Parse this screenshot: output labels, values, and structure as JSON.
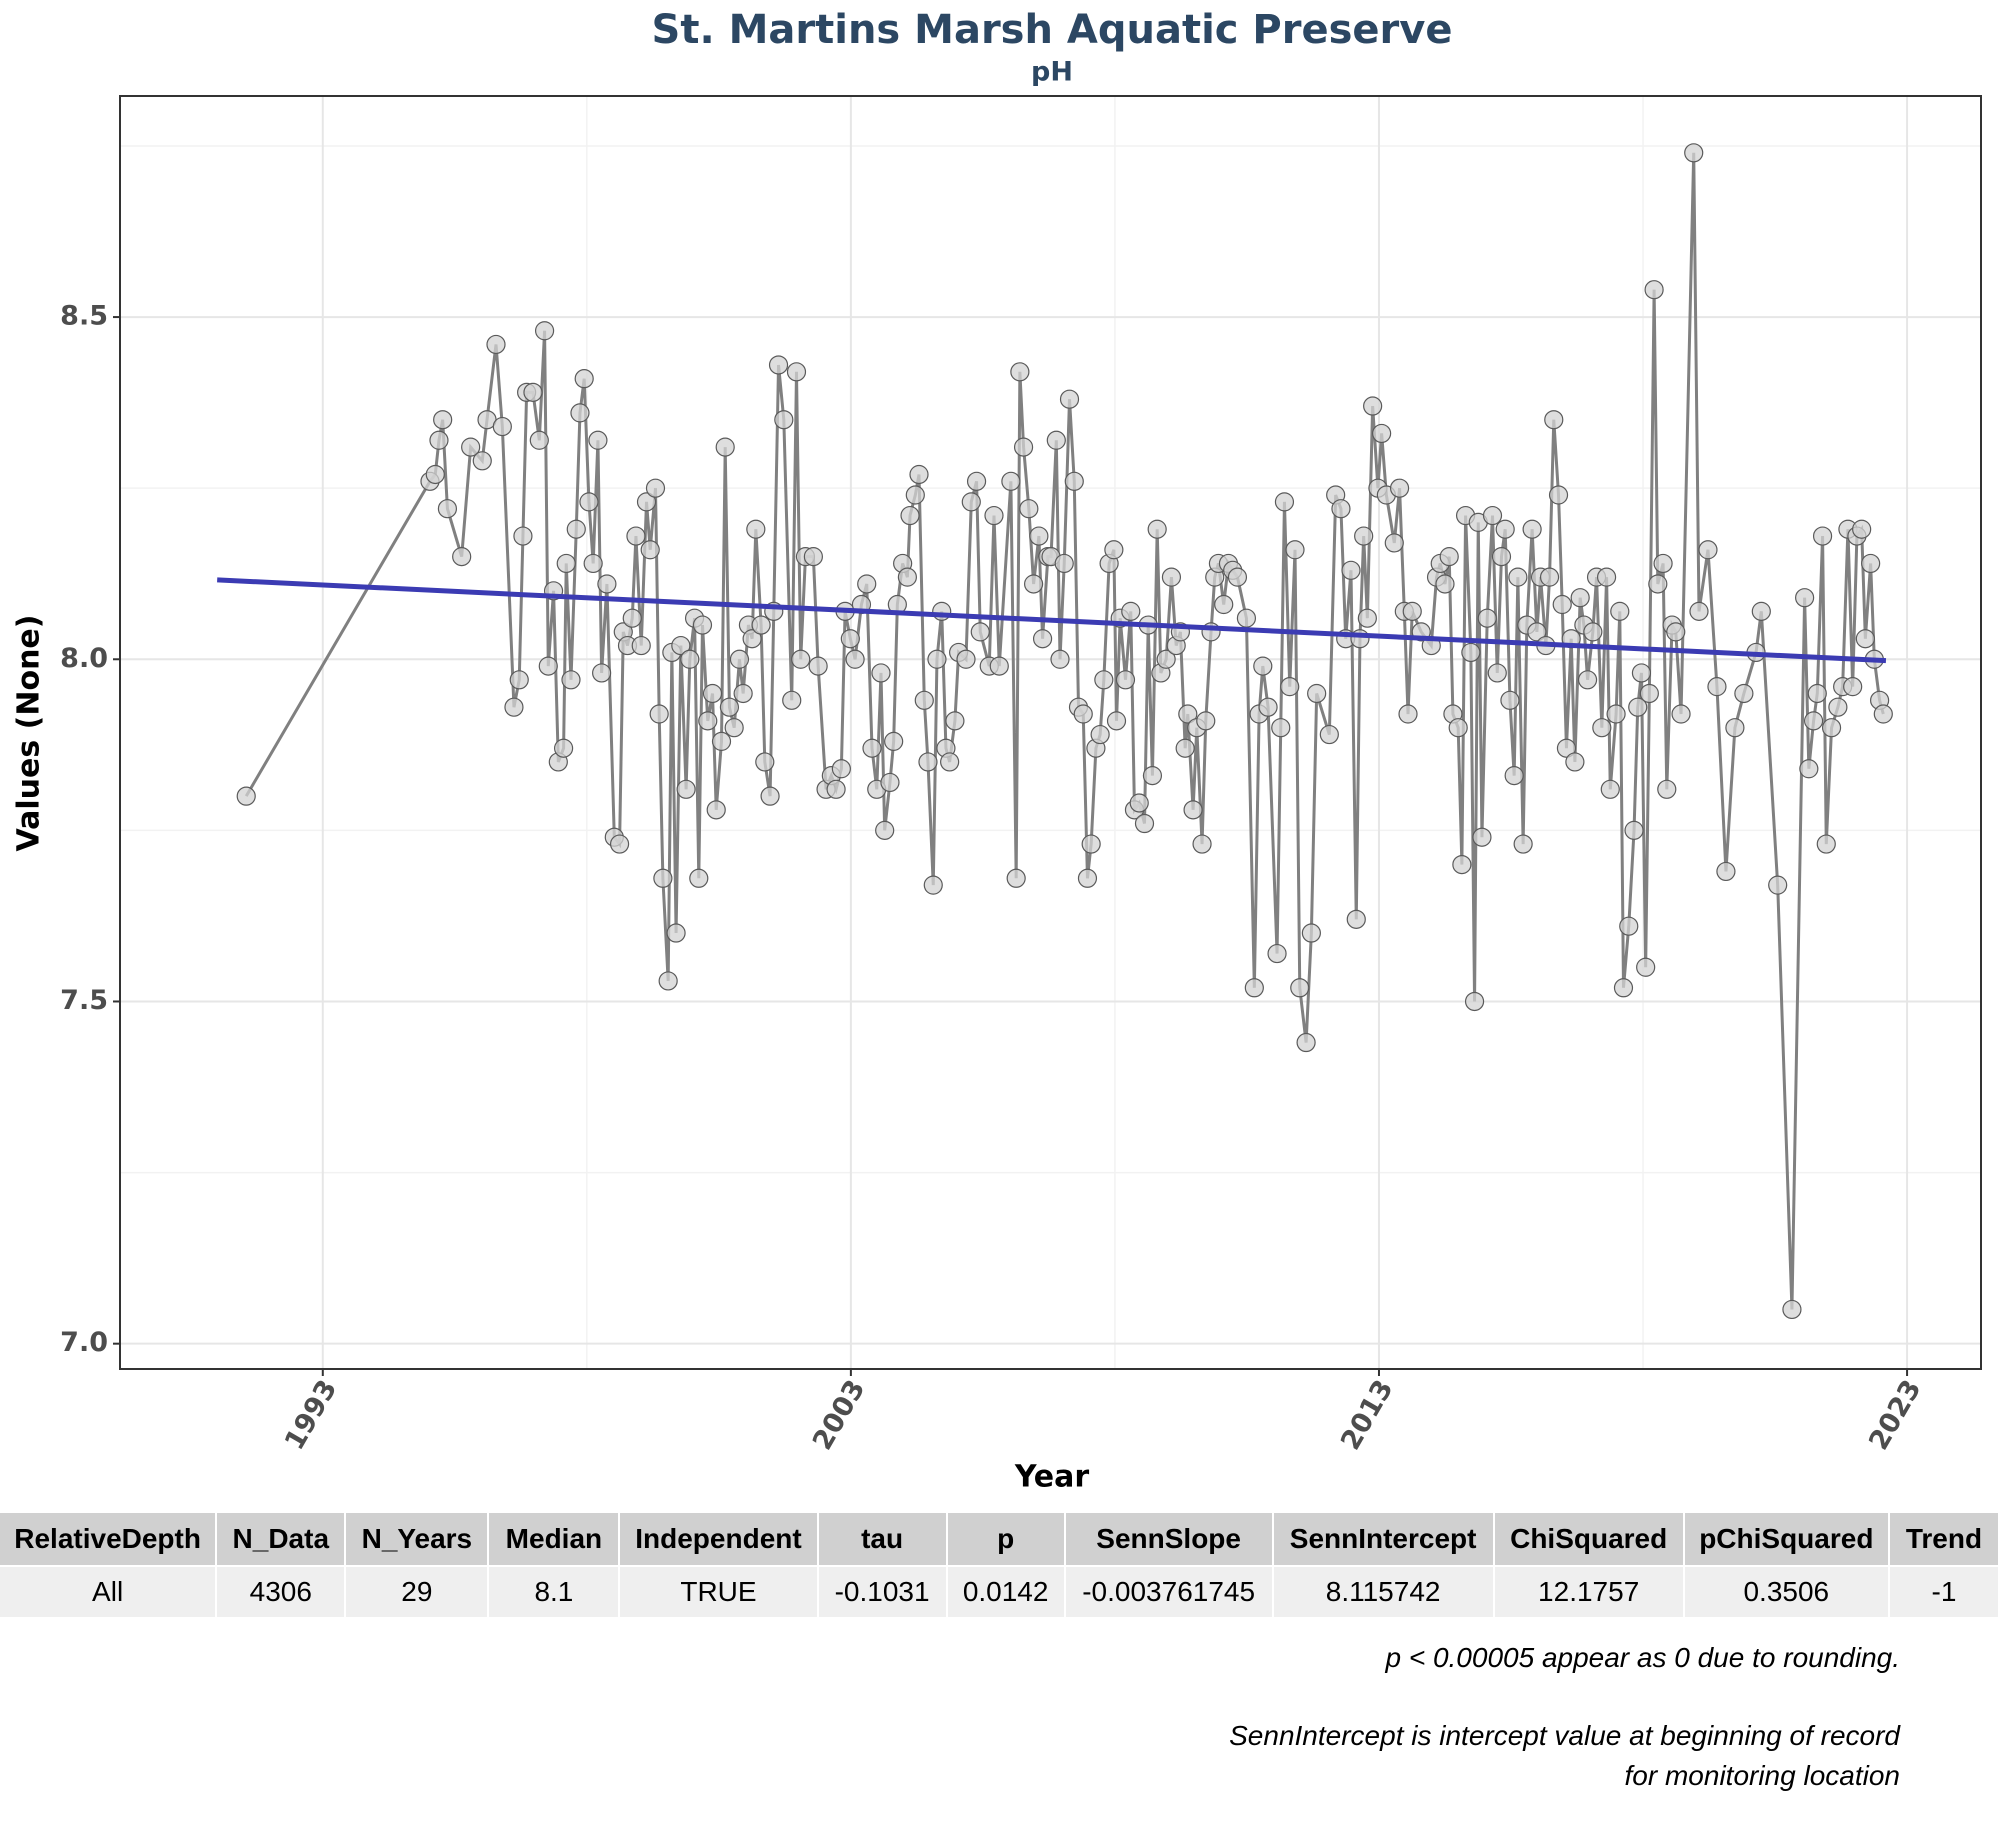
{
  "chart_data": {
    "type": "line",
    "title": "St. Martins Marsh Aquatic Preserve",
    "subtitle": "pH",
    "x_label": "Year",
    "y_label": "Values (None)",
    "xlim": [
      1989.16,
      2024.4
    ],
    "xticks": [
      1993,
      2003,
      2013,
      2023
    ],
    "x_minor_ticks": [
      1998,
      2008,
      2018
    ],
    "ylim": [
      6.963,
      8.823
    ],
    "yticks": [
      {
        "value": 7,
        "label": "7.0"
      },
      7.5,
      {
        "value": 8,
        "label": "8.0"
      },
      8.5
    ],
    "y_minor_ticks": [
      7.25,
      7.75,
      8.25,
      8.75
    ],
    "grid": true,
    "color": "#808080",
    "marker_color": "#d3d3d3",
    "x": [
      1991.55,
      1995.03,
      1995.13,
      1995.2,
      1995.27,
      1995.36,
      1995.63,
      1995.8,
      1996.02,
      1996.11,
      1996.28,
      1996.4,
      1996.62,
      1996.72,
      1996.79,
      1996.86,
      1996.98,
      1997.1,
      1997.2,
      1997.27,
      1997.37,
      1997.46,
      1997.56,
      1997.61,
      1997.7,
      1997.8,
      1997.87,
      1997.95,
      1998.04,
      1998.12,
      1998.21,
      1998.28,
      1998.38,
      1998.52,
      1998.62,
      1998.69,
      1998.77,
      1998.86,
      1998.93,
      1999.03,
      1999.13,
      1999.2,
      1999.3,
      1999.37,
      1999.44,
      1999.54,
      1999.61,
      1999.69,
      1999.78,
      1999.88,
      1999.95,
      2000.04,
      2000.12,
      2000.19,
      2000.29,
      2000.38,
      2000.45,
      2000.55,
      2000.62,
      2000.7,
      2000.79,
      2000.89,
      2000.96,
      2001.06,
      2001.13,
      2001.2,
      2001.3,
      2001.37,
      2001.47,
      2001.54,
      2001.63,
      2001.73,
      2001.88,
      2001.97,
      2002.05,
      2002.14,
      2002.29,
      2002.38,
      2002.53,
      2002.63,
      2002.72,
      2002.82,
      2002.89,
      2002.99,
      2003.08,
      2003.2,
      2003.3,
      2003.4,
      2003.49,
      2003.57,
      2003.64,
      2003.74,
      2003.81,
      2003.88,
      2003.98,
      2004.07,
      2004.12,
      2004.22,
      2004.29,
      2004.39,
      2004.46,
      2004.56,
      2004.63,
      2004.72,
      2004.8,
      2004.87,
      2004.97,
      2005.04,
      2005.18,
      2005.28,
      2005.38,
      2005.45,
      2005.62,
      2005.71,
      2005.81,
      2006.03,
      2006.13,
      2006.2,
      2006.27,
      2006.37,
      2006.46,
      2006.56,
      2006.63,
      2006.73,
      2006.79,
      2006.89,
      2006.96,
      2007.04,
      2007.14,
      2007.23,
      2007.31,
      2007.4,
      2007.48,
      2007.55,
      2007.64,
      2007.72,
      2007.79,
      2007.89,
      2007.98,
      2008.03,
      2008.1,
      2008.2,
      2008.3,
      2008.37,
      2008.46,
      2008.56,
      2008.63,
      2008.71,
      2008.8,
      2008.87,
      2008.97,
      2009.07,
      2009.16,
      2009.24,
      2009.33,
      2009.38,
      2009.48,
      2009.55,
      2009.65,
      2009.72,
      2009.82,
      2009.89,
      2009.96,
      2010.06,
      2010.15,
      2010.23,
      2010.32,
      2010.49,
      2010.64,
      2010.73,
      2010.8,
      2010.9,
      2011.07,
      2011.14,
      2011.21,
      2011.31,
      2011.41,
      2011.5,
      2011.62,
      2011.72,
      2011.82,
      2012.06,
      2012.18,
      2012.28,
      2012.37,
      2012.47,
      2012.57,
      2012.64,
      2012.71,
      2012.78,
      2012.88,
      2012.98,
      2013.05,
      2013.14,
      2013.29,
      2013.39,
      2013.48,
      2013.55,
      2013.63,
      2013.8,
      2013.99,
      2014.09,
      2014.16,
      2014.25,
      2014.33,
      2014.4,
      2014.5,
      2014.57,
      2014.64,
      2014.74,
      2014.81,
      2014.88,
      2014.95,
      2015.05,
      2015.15,
      2015.24,
      2015.32,
      2015.39,
      2015.48,
      2015.56,
      2015.63,
      2015.73,
      2015.8,
      2015.9,
      2015.99,
      2016.06,
      2016.16,
      2016.23,
      2016.31,
      2016.4,
      2016.47,
      2016.55,
      2016.64,
      2016.71,
      2016.81,
      2016.88,
      2016.95,
      2017.05,
      2017.12,
      2017.22,
      2017.31,
      2017.38,
      2017.49,
      2017.56,
      2017.63,
      2017.73,
      2017.83,
      2017.9,
      2017.97,
      2018.05,
      2018.12,
      2018.21,
      2018.28,
      2018.38,
      2018.45,
      2018.55,
      2018.62,
      2018.72,
      2018.96,
      2019.06,
      2019.23,
      2019.4,
      2019.57,
      2019.74,
      2019.91,
      2020.14,
      2020.24,
      2020.55,
      2020.82,
      2021.06,
      2021.14,
      2021.23,
      2021.3,
      2021.4,
      2021.47,
      2021.57,
      2021.69,
      2021.78,
      2021.88,
      2021.97,
      2022.05,
      2022.14,
      2022.21,
      2022.31,
      2022.38,
      2022.48,
      2022.55
    ],
    "values": [
      7.8,
      8.26,
      8.27,
      8.32,
      8.35,
      8.22,
      8.15,
      8.31,
      8.29,
      8.35,
      8.46,
      8.34,
      7.93,
      7.97,
      8.18,
      8.39,
      8.39,
      8.32,
      8.48,
      7.99,
      8.1,
      7.85,
      7.87,
      8.14,
      7.97,
      8.19,
      8.36,
      8.41,
      8.23,
      8.14,
      8.32,
      7.98,
      8.11,
      7.74,
      7.73,
      8.04,
      8.02,
      8.06,
      8.18,
      8.02,
      8.23,
      8.16,
      8.25,
      7.92,
      7.68,
      7.53,
      8.01,
      7.6,
      8.02,
      7.81,
      8.0,
      8.06,
      7.68,
      8.05,
      7.91,
      7.95,
      7.78,
      7.88,
      8.31,
      7.93,
      7.9,
      8.0,
      7.95,
      8.05,
      8.03,
      8.19,
      8.05,
      7.85,
      7.8,
      8.07,
      8.43,
      8.35,
      7.94,
      8.42,
      8.0,
      8.15,
      8.15,
      7.99,
      7.81,
      7.83,
      7.81,
      7.84,
      8.07,
      8.03,
      8.0,
      8.08,
      8.11,
      7.87,
      7.81,
      7.98,
      7.75,
      7.82,
      7.88,
      8.08,
      8.14,
      8.12,
      8.21,
      8.24,
      8.27,
      7.94,
      7.85,
      7.67,
      8.0,
      8.07,
      7.87,
      7.85,
      7.91,
      8.01,
      8.0,
      8.23,
      8.26,
      8.04,
      7.99,
      8.21,
      7.99,
      8.26,
      7.68,
      8.42,
      8.31,
      8.22,
      8.11,
      8.18,
      8.03,
      8.15,
      8.15,
      8.32,
      8.0,
      8.14,
      8.38,
      8.26,
      7.93,
      7.92,
      7.68,
      7.73,
      7.87,
      7.89,
      7.97,
      8.14,
      8.16,
      7.91,
      8.06,
      7.97,
      8.07,
      7.78,
      7.79,
      7.76,
      8.05,
      7.83,
      8.19,
      7.98,
      8.0,
      8.12,
      8.02,
      8.04,
      7.87,
      7.92,
      7.78,
      7.9,
      7.73,
      7.91,
      8.04,
      8.12,
      8.14,
      8.08,
      8.14,
      8.13,
      8.12,
      8.06,
      7.52,
      7.92,
      7.99,
      7.93,
      7.57,
      7.9,
      8.23,
      7.96,
      8.16,
      7.52,
      7.44,
      7.6,
      7.95,
      7.89,
      8.24,
      8.22,
      8.03,
      8.13,
      7.62,
      8.03,
      8.18,
      8.06,
      8.37,
      8.25,
      8.33,
      8.24,
      8.17,
      8.25,
      8.07,
      7.92,
      8.07,
      8.04,
      8.02,
      8.12,
      8.14,
      8.11,
      8.15,
      7.92,
      7.9,
      7.7,
      8.21,
      8.01,
      7.5,
      8.2,
      7.74,
      8.06,
      8.21,
      7.98,
      8.15,
      8.19,
      7.94,
      7.83,
      8.12,
      7.73,
      8.05,
      8.19,
      8.04,
      8.12,
      8.02,
      8.12,
      8.35,
      8.24,
      8.08,
      7.87,
      8.03,
      7.85,
      8.09,
      8.05,
      7.97,
      8.04,
      8.12,
      7.9,
      8.12,
      7.81,
      7.92,
      8.07,
      7.52,
      7.61,
      7.75,
      7.93,
      7.98,
      7.55,
      7.95,
      8.54,
      8.11,
      8.14,
      7.81,
      8.05,
      8.04,
      7.92,
      8.74,
      8.07,
      8.16,
      7.96,
      7.69,
      7.9,
      7.95,
      8.01,
      8.07,
      7.67,
      7.05,
      8.09,
      7.84,
      7.91,
      7.95,
      8.18,
      7.73,
      7.9,
      7.93,
      7.96,
      8.19,
      7.96,
      8.18,
      8.19,
      8.03,
      8.14,
      8.0,
      7.94,
      7.92
    ],
    "trend": {
      "color": "#3b3bb3",
      "x": [
        1991.0,
        2022.6
      ],
      "values": [
        8.116,
        7.998
      ]
    }
  },
  "table": {
    "header": [
      "RelativeDepth",
      "N_Data",
      "N_Years",
      "Median",
      "Independent",
      "tau",
      "p",
      "SennSlope",
      "SennIntercept",
      "ChiSquared",
      "pChiSquared",
      "Trend"
    ],
    "rows": [
      [
        "All",
        "4306",
        "29",
        "8.1",
        "TRUE",
        "-0.1031",
        "0.0142",
        "-0.003761745",
        "8.115742",
        "12.1757",
        "0.3506",
        "-1"
      ]
    ]
  },
  "notes": [
    "p < 0.00005 appear as 0 due to rounding.",
    "SennIntercept is intercept value at beginning of record for monitoring location"
  ]
}
